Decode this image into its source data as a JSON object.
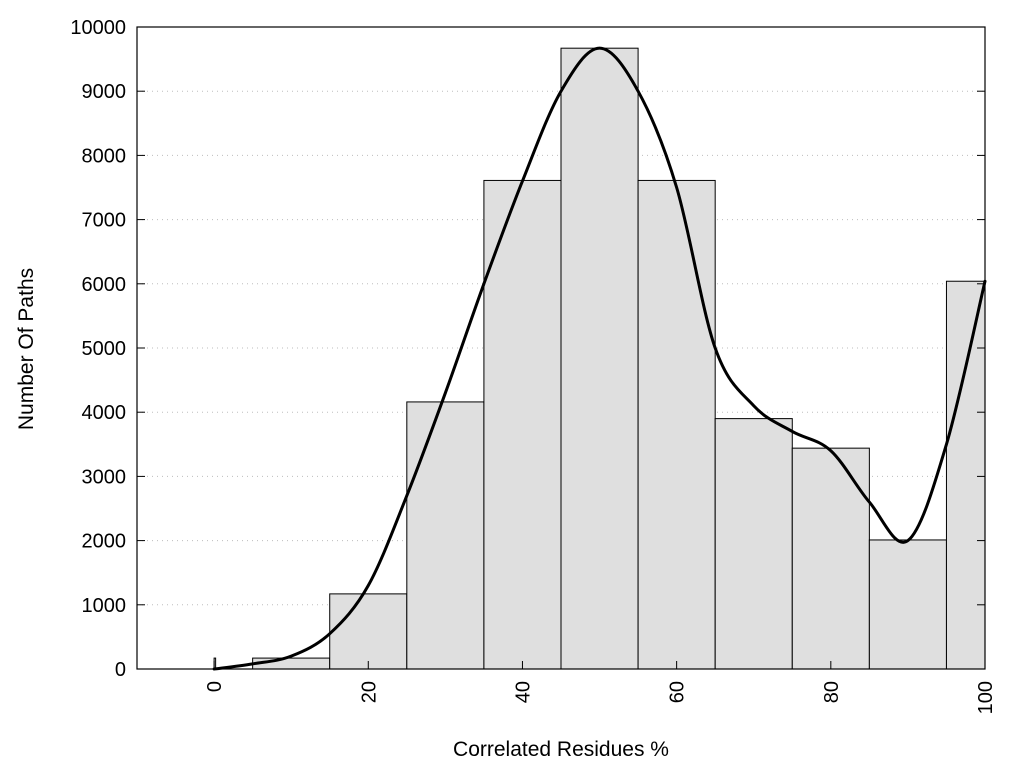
{
  "chart_data": {
    "type": "bar",
    "xlabel": "Correlated Residues %",
    "ylabel": "Number Of Paths",
    "xlim": [
      -10,
      100
    ],
    "ylim": [
      0,
      10000
    ],
    "x_ticks": [
      0,
      20,
      40,
      60,
      80,
      100
    ],
    "y_ticks": [
      0,
      1000,
      2000,
      3000,
      4000,
      5000,
      6000,
      7000,
      8000,
      9000,
      10000
    ],
    "grid": "horizontal dotted",
    "bar_color": "#dfdfdf",
    "bins": [
      {
        "start": 0,
        "end": 0.2,
        "value": 170
      },
      {
        "start": 5,
        "end": 15,
        "value": 170
      },
      {
        "start": 15,
        "end": 25,
        "value": 1170
      },
      {
        "start": 25,
        "end": 35,
        "value": 4160
      },
      {
        "start": 35,
        "end": 45,
        "value": 7610
      },
      {
        "start": 45,
        "end": 55,
        "value": 9670
      },
      {
        "start": 55,
        "end": 65,
        "value": 7610
      },
      {
        "start": 65,
        "end": 75,
        "value": 3900
      },
      {
        "start": 75,
        "end": 85,
        "value": 3440
      },
      {
        "start": 85,
        "end": 95,
        "value": 2010
      },
      {
        "start": 95,
        "end": 100,
        "value": 6040
      }
    ],
    "smooth_curve": {
      "x": [
        0,
        5,
        10,
        15,
        20,
        25,
        30,
        35,
        40,
        45,
        50,
        55,
        60,
        65,
        70,
        75,
        80,
        85,
        90,
        95,
        100
      ],
      "y": [
        0,
        80,
        200,
        550,
        1300,
        2700,
        4300,
        6000,
        7600,
        9000,
        9670,
        9000,
        7500,
        5000,
        4100,
        3700,
        3400,
        2600,
        2000,
        3500,
        6040
      ]
    }
  }
}
